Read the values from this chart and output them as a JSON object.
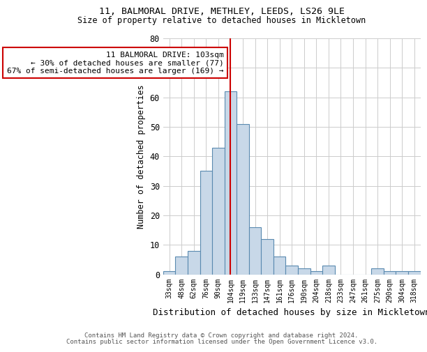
{
  "title": "11, BALMORAL DRIVE, METHLEY, LEEDS, LS26 9LE",
  "subtitle": "Size of property relative to detached houses in Mickletown",
  "xlabel": "Distribution of detached houses by size in Mickletown",
  "ylabel": "Number of detached properties",
  "categories": [
    "33sqm",
    "48sqm",
    "62sqm",
    "76sqm",
    "90sqm",
    "104sqm",
    "119sqm",
    "133sqm",
    "147sqm",
    "161sqm",
    "176sqm",
    "190sqm",
    "204sqm",
    "218sqm",
    "233sqm",
    "247sqm",
    "261sqm",
    "275sqm",
    "290sqm",
    "304sqm",
    "318sqm"
  ],
  "values": [
    1,
    6,
    8,
    35,
    43,
    62,
    51,
    16,
    12,
    6,
    3,
    2,
    1,
    3,
    0,
    0,
    0,
    2,
    1,
    1,
    1
  ],
  "bar_color": "#c8d8e8",
  "bar_edge_color": "#5a8ab0",
  "property_line_x": 5,
  "property_line_color": "#cc0000",
  "annotation_text": "11 BALMORAL DRIVE: 103sqm\n← 30% of detached houses are smaller (77)\n67% of semi-detached houses are larger (169) →",
  "annotation_box_color": "#ffffff",
  "annotation_box_edge": "#cc0000",
  "ylim": [
    0,
    80
  ],
  "yticks": [
    0,
    10,
    20,
    30,
    40,
    50,
    60,
    70,
    80
  ],
  "footer_line1": "Contains HM Land Registry data © Crown copyright and database right 2024.",
  "footer_line2": "Contains public sector information licensed under the Open Government Licence v3.0.",
  "background_color": "#ffffff",
  "grid_color": "#cccccc"
}
